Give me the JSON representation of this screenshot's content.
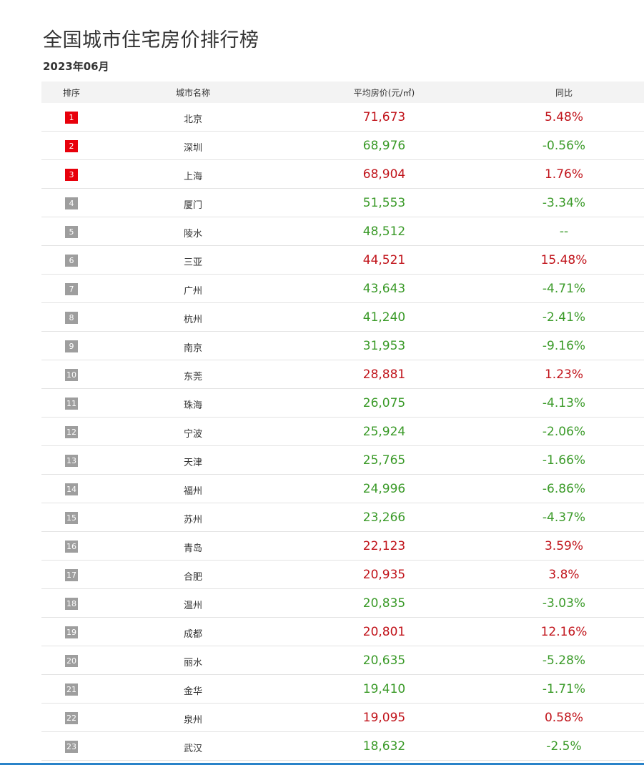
{
  "header": {
    "title": "全国城市住宅房价排行榜",
    "date": "2023年06月"
  },
  "table": {
    "columns": {
      "rank": "排序",
      "city": "城市名称",
      "price": "平均房价(元/㎡)",
      "yoy": "同比"
    },
    "rows": [
      {
        "rank": "1",
        "city": "北京",
        "price": "71,673",
        "yoy": "5.48%",
        "trend": "up"
      },
      {
        "rank": "2",
        "city": "深圳",
        "price": "68,976",
        "yoy": "-0.56%",
        "trend": "down"
      },
      {
        "rank": "3",
        "city": "上海",
        "price": "68,904",
        "yoy": "1.76%",
        "trend": "up"
      },
      {
        "rank": "4",
        "city": "厦门",
        "price": "51,553",
        "yoy": "-3.34%",
        "trend": "down"
      },
      {
        "rank": "5",
        "city": "陵水",
        "price": "48,512",
        "yoy": "--",
        "trend": "flat"
      },
      {
        "rank": "6",
        "city": "三亚",
        "price": "44,521",
        "yoy": "15.48%",
        "trend": "up"
      },
      {
        "rank": "7",
        "city": "广州",
        "price": "43,643",
        "yoy": "-4.71%",
        "trend": "down"
      },
      {
        "rank": "8",
        "city": "杭州",
        "price": "41,240",
        "yoy": "-2.41%",
        "trend": "down"
      },
      {
        "rank": "9",
        "city": "南京",
        "price": "31,953",
        "yoy": "-9.16%",
        "trend": "down"
      },
      {
        "rank": "10",
        "city": "东莞",
        "price": "28,881",
        "yoy": "1.23%",
        "trend": "up"
      },
      {
        "rank": "11",
        "city": "珠海",
        "price": "26,075",
        "yoy": "-4.13%",
        "trend": "down"
      },
      {
        "rank": "12",
        "city": "宁波",
        "price": "25,924",
        "yoy": "-2.06%",
        "trend": "down"
      },
      {
        "rank": "13",
        "city": "天津",
        "price": "25,765",
        "yoy": "-1.66%",
        "trend": "down"
      },
      {
        "rank": "14",
        "city": "福州",
        "price": "24,996",
        "yoy": "-6.86%",
        "trend": "down"
      },
      {
        "rank": "15",
        "city": "苏州",
        "price": "23,266",
        "yoy": "-4.37%",
        "trend": "down"
      },
      {
        "rank": "16",
        "city": "青岛",
        "price": "22,123",
        "yoy": "3.59%",
        "trend": "up"
      },
      {
        "rank": "17",
        "city": "合肥",
        "price": "20,935",
        "yoy": "3.8%",
        "trend": "up"
      },
      {
        "rank": "18",
        "city": "温州",
        "price": "20,835",
        "yoy": "-3.03%",
        "trend": "down"
      },
      {
        "rank": "19",
        "city": "成都",
        "price": "20,801",
        "yoy": "12.16%",
        "trend": "up"
      },
      {
        "rank": "20",
        "city": "丽水",
        "price": "20,635",
        "yoy": "-5.28%",
        "trend": "down"
      },
      {
        "rank": "21",
        "city": "金华",
        "price": "19,410",
        "yoy": "-1.71%",
        "trend": "down"
      },
      {
        "rank": "22",
        "city": "泉州",
        "price": "19,095",
        "yoy": "0.58%",
        "trend": "up"
      },
      {
        "rank": "23",
        "city": "武汉",
        "price": "18,632",
        "yoy": "-2.5%",
        "trend": "down"
      }
    ]
  },
  "colors": {
    "up": "#c1141b",
    "down": "#3a9a28",
    "top_badge": "#e8000b",
    "badge": "#9e9e9e",
    "header_bg": "#f3f3f3",
    "accent_line": "#2a83c9"
  }
}
